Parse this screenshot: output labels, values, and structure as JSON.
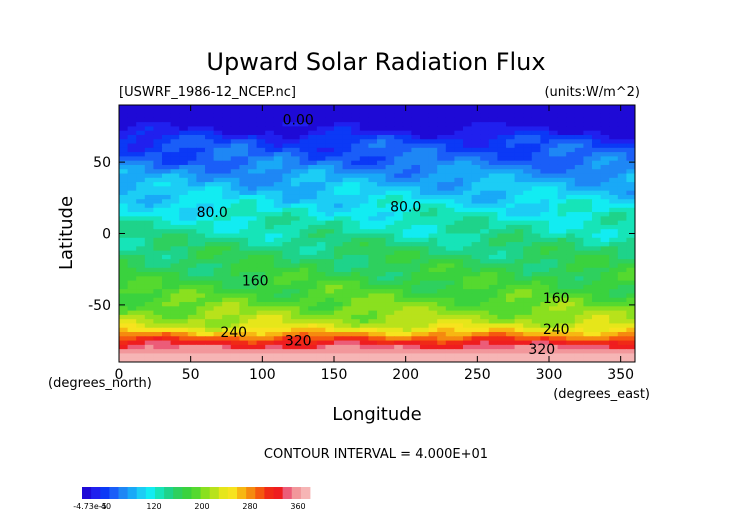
{
  "chart_data": {
    "type": "heatmap",
    "title": "Upward Solar Radiation Flux",
    "file_label": "[USWRF_1986-12_NCEP.nc]",
    "units_label": "(units:W/m^2)",
    "xlabel": "Longitude",
    "ylabel": "Latitude",
    "x_unit_label": "(degrees_east)",
    "y_unit_label": "(degrees_north)",
    "xlim": [
      0,
      360
    ],
    "ylim": [
      -90,
      90
    ],
    "x_ticks": [
      0,
      50,
      100,
      150,
      200,
      250,
      300,
      350
    ],
    "y_ticks": [
      -50,
      0,
      50
    ],
    "contour_interval_text": "CONTOUR INTERVAL = 4.000E+01",
    "contour_labels": [
      {
        "text": "0.00",
        "lon": 125,
        "lat": 80
      },
      {
        "text": "80.0",
        "lon": 65,
        "lat": 15
      },
      {
        "text": "80.0",
        "lon": 200,
        "lat": 19
      },
      {
        "text": "160",
        "lon": 95,
        "lat": -33
      },
      {
        "text": "160",
        "lon": 305,
        "lat": -45
      },
      {
        "text": "240",
        "lon": 80,
        "lat": -69
      },
      {
        "text": "320",
        "lon": 125,
        "lat": -75
      },
      {
        "text": "240",
        "lon": 305,
        "lat": -67
      },
      {
        "text": "320",
        "lon": 295,
        "lat": -81
      }
    ],
    "zonal_profile": [
      {
        "lat": 90,
        "value": 0
      },
      {
        "lat": 80,
        "value": 0
      },
      {
        "lat": 72,
        "value": 15
      },
      {
        "lat": 65,
        "value": 40
      },
      {
        "lat": 57,
        "value": 50
      },
      {
        "lat": 50,
        "value": 60
      },
      {
        "lat": 40,
        "value": 80
      },
      {
        "lat": 30,
        "value": 95
      },
      {
        "lat": 20,
        "value": 110
      },
      {
        "lat": 10,
        "value": 125
      },
      {
        "lat": 0,
        "value": 135
      },
      {
        "lat": -10,
        "value": 150
      },
      {
        "lat": -20,
        "value": 160
      },
      {
        "lat": -30,
        "value": 170
      },
      {
        "lat": -40,
        "value": 180
      },
      {
        "lat": -50,
        "value": 195
      },
      {
        "lat": -58,
        "value": 210
      },
      {
        "lat": -64,
        "value": 225
      },
      {
        "lat": -68,
        "value": 250
      },
      {
        "lat": -72,
        "value": 285
      },
      {
        "lat": -76,
        "value": 320
      },
      {
        "lat": -80,
        "value": 345
      },
      {
        "lat": -84,
        "value": 365
      },
      {
        "lat": -90,
        "value": 370
      }
    ],
    "colorbar": {
      "min_label": "-4.73e-5",
      "tick_labels": [
        "40",
        "120",
        "200",
        "280",
        "360"
      ],
      "tick_values": [
        40,
        120,
        200,
        280,
        360
      ],
      "range": [
        0,
        380
      ],
      "colors": [
        "#1e0ad6",
        "#2020ee",
        "#0b39f6",
        "#1a5ef8",
        "#1e87f5",
        "#19a9f7",
        "#1ccdf5",
        "#12ecf2",
        "#16e4b8",
        "#1ed38a",
        "#2ed05e",
        "#3ad23e",
        "#55d92f",
        "#8ae01f",
        "#b8e21b",
        "#e6e61a",
        "#f7e31e",
        "#f7b712",
        "#f58a0f",
        "#f5580f",
        "#f02a16",
        "#ef1d1f",
        "#ec5c78",
        "#f2979b",
        "#f6b5b5"
      ]
    },
    "legend": "bottom-left colorbar",
    "grid": false
  }
}
